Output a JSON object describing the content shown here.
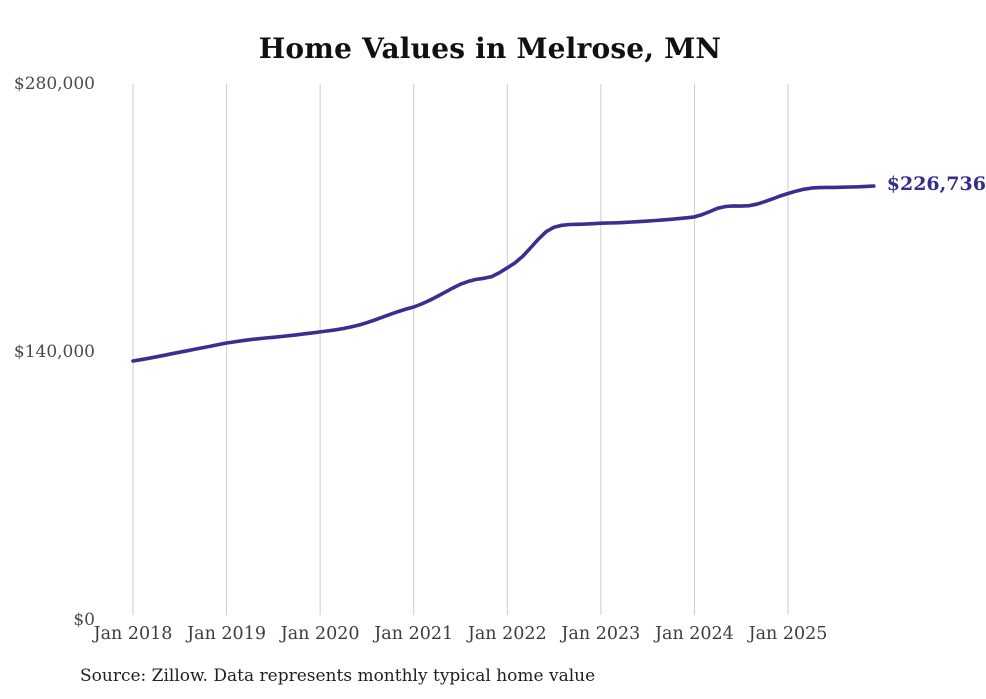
{
  "chart": {
    "title": "Home Values in Melrose, MN",
    "source_note": "Source: Zillow. Data represents monthly typical home value",
    "annotation_label": "$226,736",
    "colors": {
      "line": "#37308f",
      "annotation": "#332e8f",
      "gridline": "#cdcdcd",
      "title": "#111111",
      "axis_label": "#3d3d3d",
      "source": "#1f1f1f"
    }
  },
  "chart_data": {
    "type": "line",
    "title": "Home Values in Melrose, MN",
    "xlabel": "",
    "ylabel": "",
    "x_unit": "month",
    "start_month": "2018-01",
    "end_month": "2025-12",
    "ylim": [
      0,
      280000
    ],
    "grid": "vertical-only",
    "legend": "none",
    "y_ticks": [
      {
        "label": "$0",
        "value": 0
      },
      {
        "label": "$140,000",
        "value": 140000
      },
      {
        "label": "$280,000",
        "value": 280000
      }
    ],
    "x_ticks": [
      {
        "label": "Jan 2018",
        "month_index": 0
      },
      {
        "label": "Jan 2019",
        "month_index": 12
      },
      {
        "label": "Jan 2020",
        "month_index": 24
      },
      {
        "label": "Jan 2021",
        "month_index": 36
      },
      {
        "label": "Jan 2022",
        "month_index": 48
      },
      {
        "label": "Jan 2023",
        "month_index": 60
      },
      {
        "label": "Jan 2024",
        "month_index": 72
      },
      {
        "label": "Jan 2025",
        "month_index": 84
      }
    ],
    "series": [
      {
        "name": "Typical home value",
        "final_value": 226736,
        "values": [
          135300,
          136000,
          136700,
          137500,
          138300,
          139100,
          139900,
          140700,
          141500,
          142300,
          143100,
          143900,
          144700,
          145300,
          145900,
          146400,
          146900,
          147300,
          147700,
          148100,
          148500,
          149000,
          149500,
          150000,
          150500,
          151000,
          151600,
          152300,
          153100,
          154100,
          155300,
          156700,
          158200,
          159700,
          161100,
          162400,
          163500,
          165100,
          166900,
          169000,
          171200,
          173400,
          175400,
          176900,
          177900,
          178500,
          179400,
          181500,
          184000,
          186600,
          190100,
          194500,
          199000,
          202900,
          205200,
          206200,
          206600,
          206700,
          206800,
          207000,
          207300,
          207400,
          207500,
          207700,
          207900,
          208100,
          208400,
          208700,
          209000,
          209300,
          209700,
          210100,
          210600,
          211800,
          213400,
          215100,
          216000,
          216300,
          216200,
          216400,
          217200,
          218500,
          220000,
          221500,
          222800,
          224000,
          225000,
          225600,
          225900,
          226000,
          226000,
          226100,
          226200,
          226300,
          226500,
          226736
        ]
      }
    ]
  }
}
